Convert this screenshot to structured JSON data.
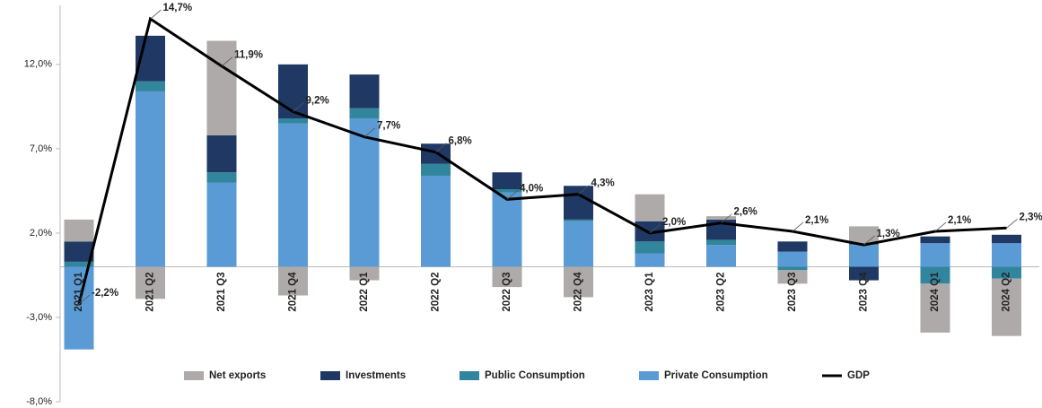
{
  "chart_data": {
    "type": "bar",
    "categories": [
      "2021 Q1",
      "2021 Q2",
      "2021 Q3",
      "2021 Q4",
      "2022 Q1",
      "2022 Q2",
      "2022 Q3",
      "2022 Q4",
      "2023 Q1",
      "2023 Q2",
      "2023 Q3",
      "2023 Q4",
      "2024 Q1",
      "2024 Q2"
    ],
    "series": [
      {
        "name": "Private Consumption",
        "color": "#5b9bd5",
        "values": [
          -4.9,
          10.4,
          5.0,
          8.5,
          8.8,
          5.4,
          4.4,
          2.7,
          0.8,
          1.3,
          0.9,
          1.3,
          1.4,
          1.4
        ]
      },
      {
        "name": "Public Consumption",
        "color": "#31859c",
        "values": [
          0.3,
          0.6,
          0.6,
          0.3,
          0.6,
          0.7,
          0.2,
          0.1,
          0.7,
          0.3,
          -0.2,
          0.1,
          -1.0,
          -0.7
        ]
      },
      {
        "name": "Investments",
        "color": "#1f3864",
        "values": [
          1.2,
          2.7,
          2.2,
          3.2,
          2.0,
          1.2,
          1.0,
          2.0,
          1.2,
          1.2,
          0.6,
          -0.8,
          0.4,
          0.5
        ]
      },
      {
        "name": "Net exports",
        "color": "#aeaaaa",
        "values": [
          1.3,
          -1.9,
          5.6,
          -1.7,
          -0.8,
          0.0,
          -1.2,
          -1.8,
          1.6,
          0.2,
          -0.8,
          1.0,
          -2.9,
          -3.4
        ]
      },
      {
        "name": "GDP",
        "type": "line",
        "color": "#000000",
        "values": [
          -2.2,
          14.7,
          11.9,
          9.2,
          7.7,
          6.8,
          4.0,
          4.3,
          2.0,
          2.6,
          2.1,
          1.3,
          2.1,
          2.3
        ],
        "value_labels": [
          "-2,2%",
          "14,7%",
          "11,9%",
          "9,2%",
          "7,7%",
          "6,8%",
          "4,0%",
          "4,3%",
          "2,0%",
          "2,6%",
          "2,1%",
          "1,3%",
          "2,1%",
          "2,3%"
        ]
      }
    ],
    "legend_order": [
      "Net exports",
      "Investments",
      "Public Consumption",
      "Private Consumption",
      "GDP"
    ],
    "ylim": [
      -8,
      15.5
    ],
    "yticks": [
      {
        "value": -8,
        "label": "-8,0%"
      },
      {
        "value": -3,
        "label": "-3,0%"
      },
      {
        "value": 2,
        "label": "2,0%"
      },
      {
        "value": 7,
        "label": "7,0%"
      },
      {
        "value": 12,
        "label": "12,0%"
      }
    ]
  }
}
